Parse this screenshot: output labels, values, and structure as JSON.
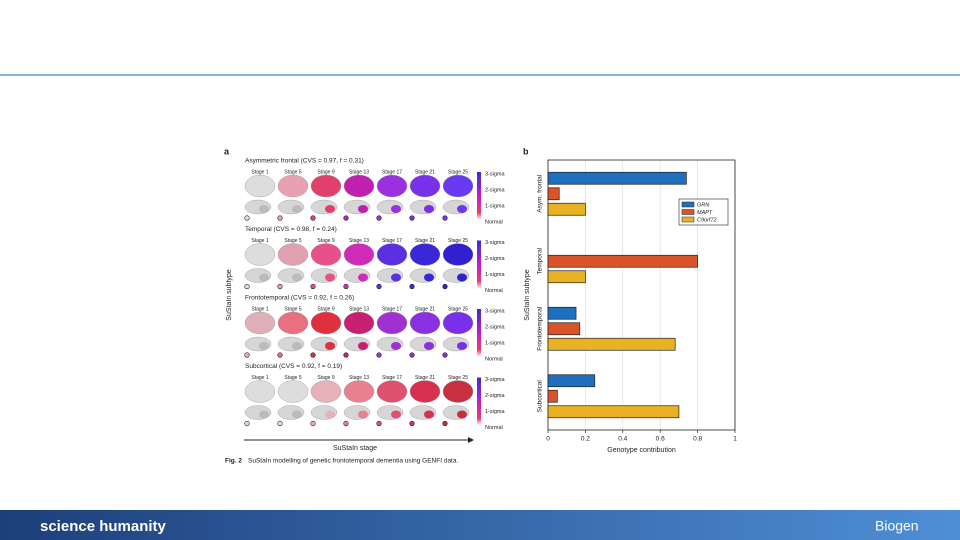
{
  "panel_a": {
    "label": "a",
    "subtypes": [
      "Asymmetric frontal (CVS = 0.97, f = 0.31)",
      "Temporal (CVS = 0.98, f = 0.24)",
      "Frontotemporal (CVS = 0.92, f = 0.26)",
      "Subcortical (CVS = 0.92, f = 0.19)"
    ],
    "stages": [
      "Stage 1",
      "Stage 5",
      "Stage 9",
      "Stage 13",
      "Stage 17",
      "Stage 21",
      "Stage 25"
    ],
    "colorbar": [
      "3-sigma",
      "2-sigma",
      "1-sigma",
      "Normal"
    ],
    "ylabel": "SuStaIn subtype",
    "xlabel": "SuStaIn stage"
  },
  "caption": {
    "label": "Fig. 2",
    "text": "SuStaIn modelling of genetic frontotemporal dementia using GENFI data."
  },
  "footer": {
    "left_logo": "science humanity",
    "right_logo": "Biogen"
  },
  "chart_data": {
    "type": "barh",
    "label": "b",
    "categories": [
      "Asym. frontal",
      "Temporal",
      "Frontotemporal",
      "Subcortical"
    ],
    "series": [
      {
        "name": "GRN",
        "color": "#1f6fbf",
        "values": [
          0.74,
          0,
          0.15,
          0.25
        ]
      },
      {
        "name": "MAPT",
        "color": "#d9532b",
        "values": [
          0.06,
          0.8,
          0.17,
          0.05
        ]
      },
      {
        "name": "C9orf72",
        "color": "#e8b224",
        "values": [
          0.2,
          0.2,
          0.68,
          0.7
        ]
      }
    ],
    "xlim": [
      0,
      1
    ],
    "xticks": [
      0,
      0.2,
      0.4,
      0.6,
      0.8,
      1
    ],
    "grid": true,
    "xlabel": "Genotype contribution",
    "ylabel": "SuStaIn subtype",
    "legend": "upper right"
  }
}
